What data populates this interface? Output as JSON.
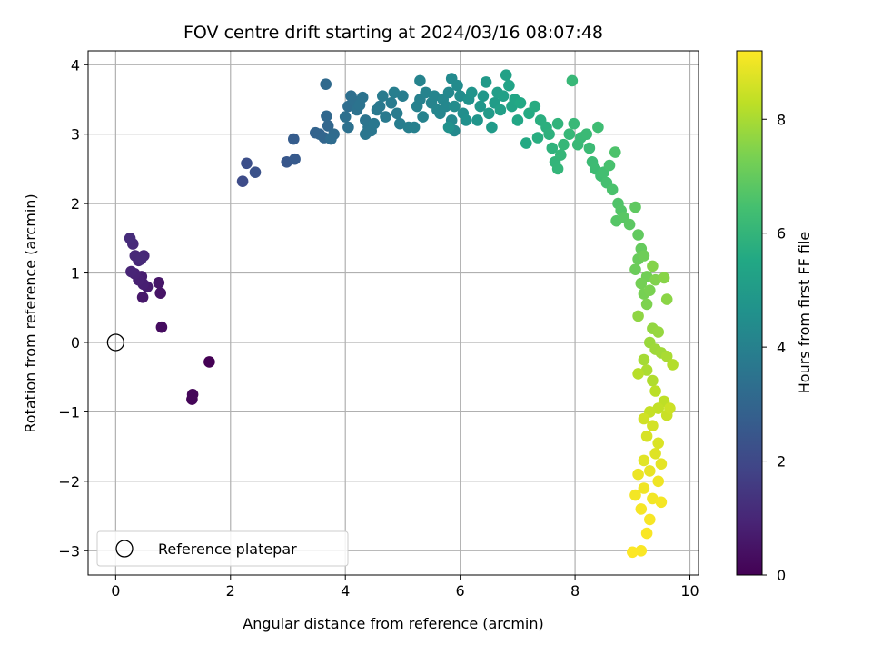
{
  "chart_data": {
    "type": "scatter",
    "title": "FOV centre drift starting at 2024/03/16 08:07:48",
    "xlabel": "Angular distance from reference (arcmin)",
    "ylabel": "Rotation from reference (arcmin)",
    "xlim": [
      -0.48,
      10.15
    ],
    "ylim": [
      -3.35,
      4.2
    ],
    "xticks": [
      0,
      2,
      4,
      6,
      8,
      10
    ],
    "yticks": [
      -3,
      -2,
      -1,
      0,
      1,
      2,
      3,
      4
    ],
    "grid": true,
    "colormap": "viridis",
    "colorbar": {
      "label": "Hours from first FF file",
      "range": [
        0,
        9.2
      ],
      "ticks": [
        0,
        2,
        4,
        6,
        8
      ]
    },
    "legend": {
      "placement": "lower-left",
      "entries": [
        "Reference platepar"
      ]
    },
    "reference_point": {
      "x": 0,
      "y": 0
    },
    "points": [
      [
        1.63,
        -0.28,
        0.0
      ],
      [
        1.33,
        -0.82,
        0.1
      ],
      [
        1.34,
        -0.75,
        0.15
      ],
      [
        0.8,
        0.22,
        0.3
      ],
      [
        0.78,
        0.71,
        0.5
      ],
      [
        0.75,
        0.86,
        0.55
      ],
      [
        0.47,
        0.65,
        0.6
      ],
      [
        0.55,
        0.8,
        0.7
      ],
      [
        0.45,
        0.95,
        0.75
      ],
      [
        0.48,
        0.84,
        0.8
      ],
      [
        0.4,
        0.9,
        0.85
      ],
      [
        0.33,
        0.99,
        0.9
      ],
      [
        0.27,
        1.02,
        0.95
      ],
      [
        0.49,
        1.25,
        1.0
      ],
      [
        0.4,
        1.18,
        1.02
      ],
      [
        0.34,
        1.25,
        1.05
      ],
      [
        0.3,
        1.42,
        1.1
      ],
      [
        0.25,
        1.5,
        1.15
      ],
      [
        0.44,
        1.2,
        1.08
      ],
      [
        2.21,
        2.32,
        2.1
      ],
      [
        2.28,
        2.58,
        2.2
      ],
      [
        2.43,
        2.45,
        2.3
      ],
      [
        2.98,
        2.6,
        2.5
      ],
      [
        3.12,
        2.64,
        2.6
      ],
      [
        3.1,
        2.93,
        2.7
      ],
      [
        3.48,
        3.02,
        2.9
      ],
      [
        3.55,
        3.0,
        2.95
      ],
      [
        3.63,
        2.95,
        3.0
      ],
      [
        3.7,
        3.12,
        3.05
      ],
      [
        3.67,
        3.26,
        3.1
      ],
      [
        3.66,
        3.72,
        3.15
      ],
      [
        3.8,
        3.0,
        3.2
      ],
      [
        3.75,
        2.93,
        3.25
      ],
      [
        4.05,
        3.4,
        3.3
      ],
      [
        4.1,
        3.55,
        3.35
      ],
      [
        4.15,
        3.48,
        3.38
      ],
      [
        4.0,
        3.25,
        3.4
      ],
      [
        4.05,
        3.1,
        3.42
      ],
      [
        4.2,
        3.35,
        3.45
      ],
      [
        4.3,
        3.53,
        3.48
      ],
      [
        4.25,
        3.42,
        3.5
      ],
      [
        4.35,
        3.2,
        3.55
      ],
      [
        4.4,
        3.1,
        3.58
      ],
      [
        4.35,
        3.0,
        3.6
      ],
      [
        4.45,
        3.05,
        3.62
      ],
      [
        4.5,
        3.15,
        3.65
      ],
      [
        4.55,
        3.35,
        3.7
      ],
      [
        4.6,
        3.4,
        3.72
      ],
      [
        4.7,
        3.25,
        3.75
      ],
      [
        4.65,
        3.55,
        3.78
      ],
      [
        4.8,
        3.45,
        3.8
      ],
      [
        4.9,
        3.3,
        3.82
      ],
      [
        4.95,
        3.15,
        3.85
      ],
      [
        5.0,
        3.55,
        3.88
      ],
      [
        4.85,
        3.6,
        3.9
      ],
      [
        5.1,
        3.1,
        3.95
      ],
      [
        5.2,
        3.1,
        3.98
      ],
      [
        5.25,
        3.4,
        4.0
      ],
      [
        5.3,
        3.5,
        4.02
      ],
      [
        5.35,
        3.25,
        4.05
      ],
      [
        5.4,
        3.6,
        4.08
      ],
      [
        5.3,
        3.77,
        4.1
      ],
      [
        5.5,
        3.45,
        4.12
      ],
      [
        5.55,
        3.55,
        4.15
      ],
      [
        5.6,
        3.35,
        4.18
      ],
      [
        5.65,
        3.3,
        4.2
      ],
      [
        5.7,
        3.5,
        4.22
      ],
      [
        5.75,
        3.4,
        4.25
      ],
      [
        5.8,
        3.6,
        4.28
      ],
      [
        5.85,
        3.2,
        4.3
      ],
      [
        5.9,
        3.05,
        4.32
      ],
      [
        5.85,
        3.8,
        4.35
      ],
      [
        5.95,
        3.7,
        4.38
      ],
      [
        5.9,
        3.4,
        4.4
      ],
      [
        6.0,
        3.55,
        4.45
      ],
      [
        6.05,
        3.3,
        4.5
      ],
      [
        6.1,
        3.2,
        4.55
      ],
      [
        5.8,
        3.1,
        4.6
      ],
      [
        6.15,
        3.5,
        4.65
      ],
      [
        6.2,
        3.6,
        4.7
      ],
      [
        6.3,
        3.2,
        4.75
      ],
      [
        6.35,
        3.4,
        4.8
      ],
      [
        6.4,
        3.55,
        4.85
      ],
      [
        6.45,
        3.75,
        4.9
      ],
      [
        6.5,
        3.3,
        4.95
      ],
      [
        6.55,
        3.1,
        5.0
      ],
      [
        6.6,
        3.45,
        5.05
      ],
      [
        6.65,
        3.6,
        5.1
      ],
      [
        6.7,
        3.35,
        5.15
      ],
      [
        6.75,
        3.55,
        5.2
      ],
      [
        6.8,
        3.85,
        5.25
      ],
      [
        6.85,
        3.7,
        5.3
      ],
      [
        6.9,
        3.4,
        5.35
      ],
      [
        6.95,
        3.5,
        5.4
      ],
      [
        7.0,
        3.2,
        5.45
      ],
      [
        7.05,
        3.45,
        5.5
      ],
      [
        7.15,
        2.87,
        5.55
      ],
      [
        7.2,
        3.3,
        5.6
      ],
      [
        7.3,
        3.4,
        5.65
      ],
      [
        7.35,
        2.95,
        5.7
      ],
      [
        7.4,
        3.2,
        5.75
      ],
      [
        7.5,
        3.1,
        5.8
      ],
      [
        7.55,
        3.0,
        5.85
      ],
      [
        7.6,
        2.8,
        5.9
      ],
      [
        7.7,
        3.15,
        5.95
      ],
      [
        7.65,
        2.6,
        6.0
      ],
      [
        7.7,
        2.5,
        6.02
      ],
      [
        7.75,
        2.7,
        6.05
      ],
      [
        7.8,
        2.85,
        6.08
      ],
      [
        7.9,
        3.0,
        6.1
      ],
      [
        7.95,
        3.77,
        6.12
      ],
      [
        7.98,
        3.15,
        6.14
      ],
      [
        8.05,
        2.85,
        6.16
      ],
      [
        8.1,
        2.95,
        6.18
      ],
      [
        8.2,
        3.0,
        6.2
      ],
      [
        8.25,
        2.8,
        6.22
      ],
      [
        8.3,
        2.6,
        6.25
      ],
      [
        8.35,
        2.5,
        6.28
      ],
      [
        8.4,
        3.1,
        6.3
      ],
      [
        8.45,
        2.4,
        6.35
      ],
      [
        8.5,
        2.45,
        6.4
      ],
      [
        8.55,
        2.3,
        6.45
      ],
      [
        8.6,
        2.55,
        6.5
      ],
      [
        8.65,
        2.2,
        6.55
      ],
      [
        8.7,
        2.74,
        6.6
      ],
      [
        8.75,
        2.0,
        6.65
      ],
      [
        8.8,
        1.9,
        6.7
      ],
      [
        8.72,
        1.75,
        6.75
      ],
      [
        8.85,
        1.8,
        6.8
      ],
      [
        8.95,
        1.7,
        6.85
      ],
      [
        9.05,
        1.95,
        6.9
      ],
      [
        9.1,
        1.55,
        6.95
      ],
      [
        9.15,
        1.35,
        7.0
      ],
      [
        9.1,
        1.2,
        7.05
      ],
      [
        9.05,
        1.05,
        7.1
      ],
      [
        9.2,
        1.25,
        7.15
      ],
      [
        9.25,
        0.95,
        7.2
      ],
      [
        9.15,
        0.85,
        7.25
      ],
      [
        9.2,
        0.7,
        7.3
      ],
      [
        9.3,
        0.75,
        7.35
      ],
      [
        9.25,
        0.55,
        7.4
      ],
      [
        9.4,
        0.9,
        7.45
      ],
      [
        9.35,
        1.1,
        7.5
      ],
      [
        9.55,
        0.93,
        7.55
      ],
      [
        9.6,
        0.62,
        7.6
      ],
      [
        9.1,
        0.38,
        7.65
      ],
      [
        9.35,
        0.2,
        7.7
      ],
      [
        9.45,
        0.15,
        7.75
      ],
      [
        9.3,
        0.0,
        7.8
      ],
      [
        9.4,
        -0.1,
        7.85
      ],
      [
        9.5,
        -0.15,
        7.9
      ],
      [
        9.2,
        -0.25,
        7.95
      ],
      [
        9.6,
        -0.2,
        8.0
      ],
      [
        9.25,
        -0.4,
        8.05
      ],
      [
        9.35,
        -0.55,
        8.1
      ],
      [
        9.7,
        -0.32,
        8.15
      ],
      [
        9.1,
        -0.45,
        8.2
      ],
      [
        9.4,
        -0.7,
        8.25
      ],
      [
        9.55,
        -0.85,
        8.3
      ],
      [
        9.45,
        -0.95,
        8.35
      ],
      [
        9.3,
        -1.0,
        8.4
      ],
      [
        9.6,
        -1.05,
        8.45
      ],
      [
        9.65,
        -0.95,
        8.5
      ],
      [
        9.2,
        -1.1,
        8.55
      ],
      [
        9.35,
        -1.2,
        8.6
      ],
      [
        9.25,
        -1.35,
        8.65
      ],
      [
        9.45,
        -1.45,
        8.7
      ],
      [
        9.4,
        -1.6,
        8.75
      ],
      [
        9.2,
        -1.7,
        8.8
      ],
      [
        9.5,
        -1.75,
        8.85
      ],
      [
        9.3,
        -1.85,
        8.9
      ],
      [
        9.1,
        -1.9,
        8.95
      ],
      [
        9.45,
        -2.0,
        9.0
      ],
      [
        9.2,
        -2.1,
        9.02
      ],
      [
        9.35,
        -2.25,
        9.04
      ],
      [
        9.05,
        -2.2,
        9.06
      ],
      [
        9.5,
        -2.3,
        9.08
      ],
      [
        9.15,
        -2.4,
        9.1
      ],
      [
        9.3,
        -2.55,
        9.12
      ],
      [
        9.25,
        -2.75,
        9.14
      ],
      [
        9.15,
        -3.0,
        9.16
      ],
      [
        9.0,
        -3.02,
        9.18
      ]
    ]
  }
}
